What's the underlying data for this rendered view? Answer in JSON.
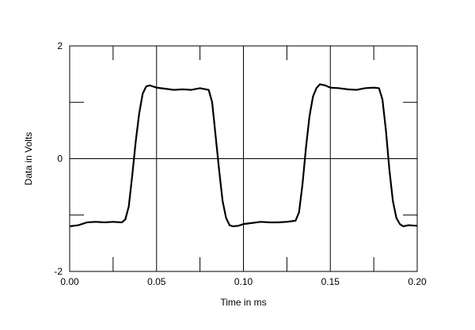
{
  "chart_data": {
    "type": "line",
    "title": "",
    "xlabel": "Time in ms",
    "ylabel": "Data in Volts",
    "xlim": [
      0.0,
      0.2
    ],
    "ylim": [
      -2,
      2
    ],
    "grid": true,
    "x_tick_labels": [
      "0.00",
      "0.05",
      "0.10",
      "0.15",
      "0.20"
    ],
    "x_tick_values": [
      0.0,
      0.05,
      0.1,
      0.15,
      0.2
    ],
    "y_tick_labels": [
      "2",
      "0",
      "-2"
    ],
    "y_tick_values": [
      2,
      0,
      -2
    ],
    "series": [
      {
        "x": [
          0.0,
          0.005,
          0.01,
          0.015,
          0.02,
          0.025,
          0.03,
          0.032,
          0.034,
          0.036,
          0.038,
          0.04,
          0.042,
          0.044,
          0.046,
          0.05,
          0.055,
          0.06,
          0.065,
          0.07,
          0.075,
          0.08,
          0.082,
          0.084,
          0.086,
          0.088,
          0.09,
          0.092,
          0.094,
          0.097,
          0.1,
          0.105,
          0.11,
          0.115,
          0.12,
          0.125,
          0.13,
          0.132,
          0.134,
          0.136,
          0.138,
          0.14,
          0.142,
          0.144,
          0.147,
          0.15,
          0.155,
          0.16,
          0.165,
          0.17,
          0.175,
          0.178,
          0.18,
          0.182,
          0.184,
          0.186,
          0.188,
          0.19,
          0.192,
          0.195,
          0.2
        ],
        "y": [
          -1.2,
          -1.18,
          -1.13,
          -1.12,
          -1.13,
          -1.12,
          -1.13,
          -1.08,
          -0.85,
          -0.3,
          0.3,
          0.8,
          1.15,
          1.28,
          1.3,
          1.26,
          1.24,
          1.22,
          1.23,
          1.22,
          1.25,
          1.22,
          1.0,
          0.4,
          -0.2,
          -0.75,
          -1.05,
          -1.18,
          -1.2,
          -1.19,
          -1.16,
          -1.14,
          -1.12,
          -1.13,
          -1.13,
          -1.12,
          -1.1,
          -0.95,
          -0.45,
          0.2,
          0.75,
          1.1,
          1.25,
          1.32,
          1.3,
          1.26,
          1.25,
          1.23,
          1.22,
          1.25,
          1.26,
          1.25,
          1.05,
          0.5,
          -0.2,
          -0.75,
          -1.05,
          -1.16,
          -1.2,
          -1.18,
          -1.19
        ]
      }
    ]
  }
}
